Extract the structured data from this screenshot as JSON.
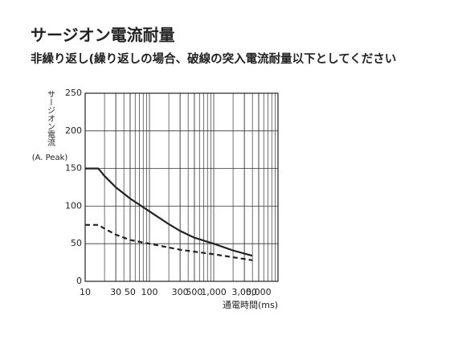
{
  "chart_data": {
    "type": "line",
    "title": "サージオン電流耐量",
    "subtitle": "非繰り返し(繰り返しの場合、破線の突入電流耐量以下としてください",
    "y_label": "サージオン電流",
    "y_unit": "(A. Peak)",
    "x_label": "通電時間(ms)",
    "x_scale": "log",
    "xlim": [
      10,
      10000
    ],
    "xticks": [
      10,
      30,
      50,
      100,
      300,
      500,
      {
        "value": 1000,
        "label": "1,000"
      },
      {
        "value": 3000,
        "label": "3,000"
      },
      {
        "value": 5000,
        "label": "5,000"
      }
    ],
    "ylim": [
      0,
      250
    ],
    "yticks": [
      0,
      50,
      100,
      150,
      200,
      250
    ],
    "grid": true,
    "series": [
      {
        "color": "#222222",
        "line_style": "solid",
        "x": [
          10,
          16,
          20,
          30,
          50,
          100,
          200,
          300,
          500,
          1000,
          2000,
          4000
        ],
        "values": [
          150,
          150,
          140,
          125,
          110,
          93,
          76,
          67,
          58,
          50,
          41,
          34
        ]
      },
      {
        "color": "#222222",
        "line_style": "dashed",
        "x": [
          10,
          16,
          20,
          30,
          50,
          100,
          300,
          1000,
          2000,
          4000
        ],
        "values": [
          75,
          75,
          70,
          62,
          55,
          50,
          42,
          36,
          32,
          28
        ]
      }
    ]
  }
}
